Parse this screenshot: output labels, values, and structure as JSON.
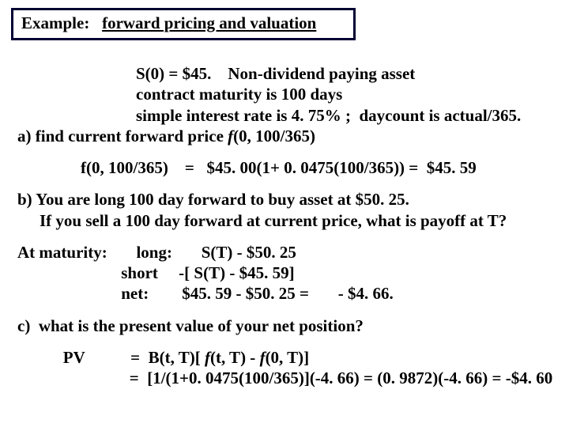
{
  "title": {
    "label": "Example:",
    "text": "forward pricing and valuation"
  },
  "given": {
    "l1a": "S(0) = $45.",
    "l1b": "Non-dividend paying asset",
    "l2": "contract maturity is 100 days",
    "l3": "simple interest rate is 4. 75% ;  daycount is actual/365."
  },
  "partA": {
    "prompt_a": "a) find current forward price ",
    "prompt_f": "f",
    "prompt_b": "(0, 100/365)",
    "calc": "f(0, 100/365)    =   $45. 00(1+ 0. 0475(100/365)) =  $45. 59"
  },
  "partB": {
    "l1": "b) You are long 100 day forward to buy asset at $50. 25.",
    "l2": "If you sell a 100 day forward at current price, what is payoff at T?"
  },
  "maturity": {
    "label": "At maturity:",
    "long_lbl": "long:",
    "long_val": "S(T) - $50. 25",
    "short_lbl": "short",
    "short_val": "-[ S(T) - $45. 59]",
    "net_lbl": "net:",
    "net_val1": "$45. 59 - $50. 25 =",
    "net_val2": "- $4. 66."
  },
  "partC": {
    "prompt": "c)  what is the present value of your net position?",
    "pv_label": "PV",
    "l1a": "=  B(t, T)[ ",
    "l1f1": "f",
    "l1b": "(t, T) - ",
    "l1f2": "f",
    "l1c": "(0, T)]",
    "l2": "=  [1/(1+0. 0475(100/365)](-4. 66) = (0. 9872)(-4. 66) = -$4. 60"
  }
}
